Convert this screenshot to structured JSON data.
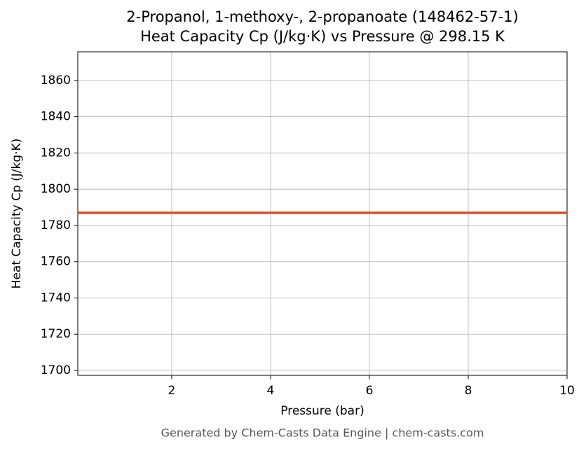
{
  "chart_data": {
    "type": "line",
    "title": "2-Propanol, 1-methoxy-, 2-propanoate (148462-57-1)",
    "subtitle": "Heat Capacity Cp (J/kg·K) vs Pressure @ 298.15 K",
    "x_label": "Pressure (bar)",
    "y_label": "Heat Capacity Cp (J/kg·K)",
    "footer": "Generated by Chem-Casts Data Engine | chem-casts.com",
    "x": [
      0.1,
      10
    ],
    "series": [
      {
        "name": "Cp",
        "color": "#c8552b",
        "values": [
          1787,
          1787
        ]
      }
    ],
    "xlim": [
      0.1,
      10
    ],
    "xticks": [
      2,
      4,
      6,
      8,
      10
    ],
    "ylim": [
      1697.3,
      1875.8
    ],
    "yticks": [
      1700,
      1720,
      1740,
      1760,
      1780,
      1800,
      1820,
      1840,
      1860
    ],
    "grid": true
  }
}
